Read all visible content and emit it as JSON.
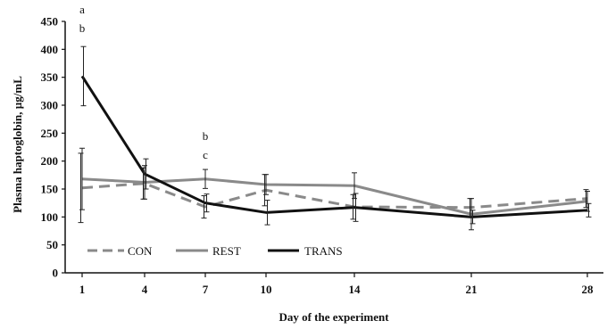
{
  "chart_data": {
    "type": "line",
    "xlabel": "Day of the experiment",
    "ylabel": "Plasma haptoglobin, µg/mL",
    "x": [
      "1",
      "4",
      "7",
      "10",
      "14",
      "21",
      "28"
    ],
    "ylim": [
      0,
      450
    ],
    "yticks": [
      0,
      50,
      100,
      150,
      200,
      250,
      300,
      350,
      400,
      450
    ],
    "grid": false,
    "legend_position": "bottom-left",
    "series": [
      {
        "name": "CON",
        "style": "dashed",
        "color": "#8a8a8a",
        "values": [
          152,
          160,
          118,
          148,
          118,
          117,
          133
        ],
        "error": [
          62,
          28,
          20,
          28,
          22,
          16,
          16
        ]
      },
      {
        "name": "REST",
        "style": "solid",
        "color": "#8a8a8a",
        "values": [
          168,
          162,
          168,
          158,
          156,
          105,
          128
        ],
        "error": [
          55,
          30,
          17,
          18,
          23,
          28,
          18
        ]
      },
      {
        "name": "TRANS",
        "style": "solid",
        "color": "#111111",
        "values": [
          352,
          177,
          125,
          108,
          117,
          100,
          112
        ],
        "error": [
          53,
          27,
          16,
          22,
          25,
          12,
          12
        ]
      }
    ],
    "annotations": [
      {
        "x": "1",
        "lines": [
          "a",
          "b"
        ]
      },
      {
        "x": "7",
        "lines": [
          "b",
          "c"
        ]
      }
    ]
  }
}
